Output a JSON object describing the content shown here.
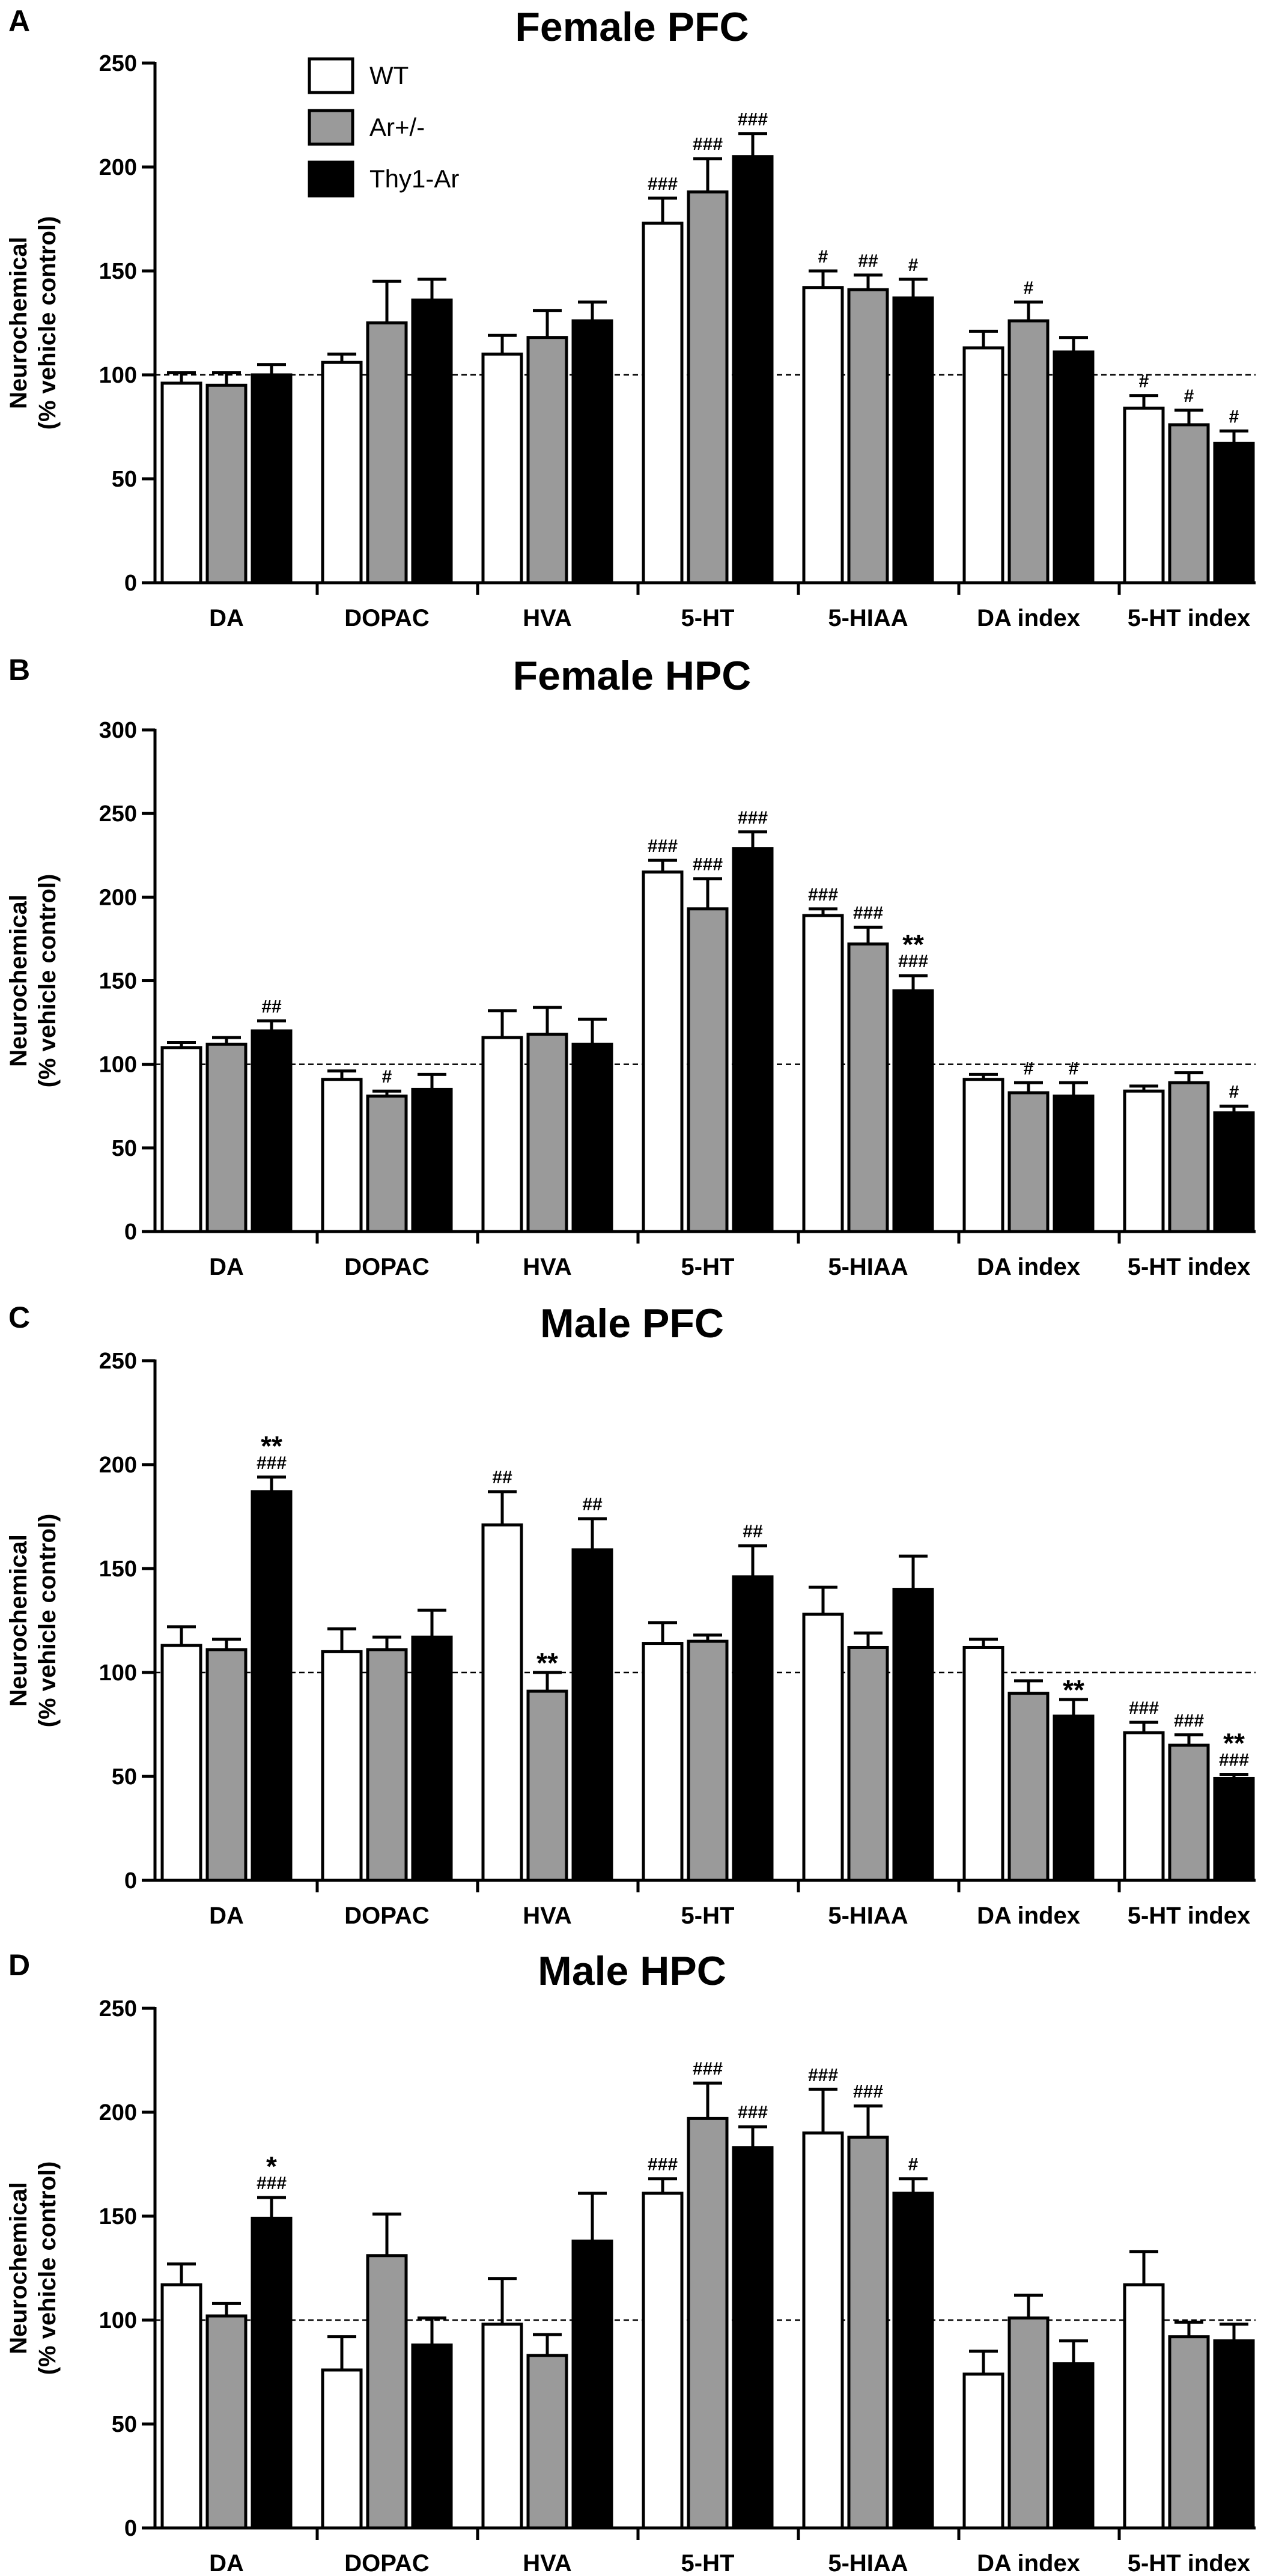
{
  "chart_data": [
    {
      "type": "bar",
      "panel": "A",
      "title": "Female PFC",
      "ylabel": [
        "Neurochemical",
        "(% vehicle control)"
      ],
      "ylim": [
        0,
        250
      ],
      "yticks": [
        0,
        50,
        100,
        150,
        200,
        250
      ],
      "reference_line": 100,
      "categories": [
        "DA",
        "DOPAC",
        "HVA",
        "5-HT",
        "5-HIAA",
        "DA index",
        "5-HT index"
      ],
      "legend": [
        "WT",
        "Ar+/-",
        "Thy1-Ar"
      ],
      "series": [
        {
          "name": "WT",
          "color": "#ffffff",
          "values": [
            96,
            106,
            110,
            173,
            142,
            113,
            84
          ],
          "errors": [
            5,
            4,
            9,
            12,
            8,
            8,
            6
          ]
        },
        {
          "name": "Ar+/-",
          "color": "#9a9a9a",
          "values": [
            95,
            125,
            118,
            188,
            141,
            126,
            76
          ],
          "errors": [
            6,
            20,
            13,
            16,
            7,
            9,
            7
          ]
        },
        {
          "name": "Thy1-Ar",
          "color": "#000000",
          "values": [
            100,
            136,
            126,
            205,
            137,
            111,
            67
          ],
          "errors": [
            5,
            10,
            9,
            11,
            9,
            7,
            6
          ]
        }
      ],
      "annotations": [
        {
          "cat": 3,
          "series": 0,
          "lines": [
            "###"
          ]
        },
        {
          "cat": 3,
          "series": 1,
          "lines": [
            "###"
          ]
        },
        {
          "cat": 3,
          "series": 2,
          "lines": [
            "###"
          ]
        },
        {
          "cat": 4,
          "series": 0,
          "lines": [
            "#"
          ]
        },
        {
          "cat": 4,
          "series": 1,
          "lines": [
            "##"
          ]
        },
        {
          "cat": 4,
          "series": 2,
          "lines": [
            "#"
          ]
        },
        {
          "cat": 5,
          "series": 1,
          "lines": [
            "#"
          ]
        },
        {
          "cat": 6,
          "series": 0,
          "lines": [
            "#"
          ]
        },
        {
          "cat": 6,
          "series": 1,
          "lines": [
            "#"
          ]
        },
        {
          "cat": 6,
          "series": 2,
          "lines": [
            "#"
          ]
        }
      ]
    },
    {
      "type": "bar",
      "panel": "B",
      "title": "Female HPC",
      "ylabel": [
        "Neurochemical",
        "(% vehicle control)"
      ],
      "ylim": [
        0,
        300
      ],
      "yticks": [
        0,
        50,
        100,
        150,
        200,
        250,
        300
      ],
      "reference_line": 100,
      "categories": [
        "DA",
        "DOPAC",
        "HVA",
        "5-HT",
        "5-HIAA",
        "DA index",
        "5-HT index"
      ],
      "series": [
        {
          "name": "WT",
          "color": "#ffffff",
          "values": [
            110,
            91,
            116,
            215,
            189,
            91,
            84
          ],
          "errors": [
            3,
            5,
            16,
            7,
            4,
            3,
            3
          ]
        },
        {
          "name": "Ar+/-",
          "color": "#9a9a9a",
          "values": [
            112,
            81,
            118,
            193,
            172,
            83,
            89
          ],
          "errors": [
            4,
            3,
            16,
            18,
            10,
            6,
            6
          ]
        },
        {
          "name": "Thy1-Ar",
          "color": "#000000",
          "values": [
            120,
            85,
            112,
            229,
            144,
            81,
            71
          ],
          "errors": [
            6,
            9,
            15,
            10,
            9,
            8,
            4
          ]
        }
      ],
      "annotations": [
        {
          "cat": 0,
          "series": 2,
          "lines": [
            "##"
          ]
        },
        {
          "cat": 1,
          "series": 1,
          "lines": [
            "#"
          ]
        },
        {
          "cat": 3,
          "series": 0,
          "lines": [
            "###"
          ]
        },
        {
          "cat": 3,
          "series": 1,
          "lines": [
            "###"
          ]
        },
        {
          "cat": 3,
          "series": 2,
          "lines": [
            "###"
          ]
        },
        {
          "cat": 4,
          "series": 0,
          "lines": [
            "###"
          ]
        },
        {
          "cat": 4,
          "series": 1,
          "lines": [
            "###"
          ]
        },
        {
          "cat": 4,
          "series": 2,
          "lines": [
            "**",
            "###"
          ]
        },
        {
          "cat": 5,
          "series": 1,
          "lines": [
            "#"
          ]
        },
        {
          "cat": 5,
          "series": 2,
          "lines": [
            "#"
          ]
        },
        {
          "cat": 6,
          "series": 2,
          "lines": [
            "#"
          ]
        }
      ]
    },
    {
      "type": "bar",
      "panel": "C",
      "title": "Male PFC",
      "ylabel": [
        "Neurochemical",
        "(% vehicle control)"
      ],
      "ylim": [
        0,
        250
      ],
      "yticks": [
        0,
        50,
        100,
        150,
        200,
        250
      ],
      "reference_line": 100,
      "categories": [
        "DA",
        "DOPAC",
        "HVA",
        "5-HT",
        "5-HIAA",
        "DA index",
        "5-HT index"
      ],
      "series": [
        {
          "name": "WT",
          "color": "#ffffff",
          "values": [
            113,
            110,
            171,
            114,
            128,
            112,
            71
          ],
          "errors": [
            9,
            11,
            16,
            10,
            13,
            4,
            5
          ]
        },
        {
          "name": "Ar+/-",
          "color": "#9a9a9a",
          "values": [
            111,
            111,
            91,
            115,
            112,
            90,
            65
          ],
          "errors": [
            5,
            6,
            9,
            3,
            7,
            6,
            5
          ]
        },
        {
          "name": "Thy1-Ar",
          "color": "#000000",
          "values": [
            187,
            117,
            159,
            146,
            140,
            79,
            49
          ],
          "errors": [
            7,
            13,
            15,
            15,
            16,
            8,
            2
          ]
        }
      ],
      "annotations": [
        {
          "cat": 0,
          "series": 2,
          "lines": [
            "**",
            "###"
          ]
        },
        {
          "cat": 2,
          "series": 0,
          "lines": [
            "##"
          ]
        },
        {
          "cat": 2,
          "series": 1,
          "lines": [
            "**"
          ]
        },
        {
          "cat": 2,
          "series": 2,
          "lines": [
            "##"
          ]
        },
        {
          "cat": 3,
          "series": 2,
          "lines": [
            "##"
          ]
        },
        {
          "cat": 5,
          "series": 2,
          "lines": [
            "**"
          ]
        },
        {
          "cat": 6,
          "series": 0,
          "lines": [
            "###"
          ]
        },
        {
          "cat": 6,
          "series": 1,
          "lines": [
            "###"
          ]
        },
        {
          "cat": 6,
          "series": 2,
          "lines": [
            "**",
            "###"
          ]
        }
      ]
    },
    {
      "type": "bar",
      "panel": "D",
      "title": "Male HPC",
      "ylabel": [
        "Neurochemical",
        "(% vehicle control)"
      ],
      "ylim": [
        0,
        250
      ],
      "yticks": [
        0,
        50,
        100,
        150,
        200,
        250
      ],
      "reference_line": 100,
      "categories": [
        "DA",
        "DOPAC",
        "HVA",
        "5-HT",
        "5-HIAA",
        "DA index",
        "5-HT index"
      ],
      "series": [
        {
          "name": "WT",
          "color": "#ffffff",
          "values": [
            117,
            76,
            98,
            161,
            190,
            74,
            117
          ],
          "errors": [
            10,
            16,
            22,
            7,
            21,
            11,
            16
          ]
        },
        {
          "name": "Ar+/-",
          "color": "#9a9a9a",
          "values": [
            102,
            131,
            83,
            197,
            188,
            101,
            92
          ],
          "errors": [
            6,
            20,
            10,
            17,
            15,
            11,
            7
          ]
        },
        {
          "name": "Thy1-Ar",
          "color": "#000000",
          "values": [
            149,
            88,
            138,
            183,
            161,
            79,
            90
          ],
          "errors": [
            10,
            13,
            23,
            10,
            7,
            11,
            8
          ]
        }
      ],
      "annotations": [
        {
          "cat": 0,
          "series": 2,
          "lines": [
            "*",
            "###"
          ]
        },
        {
          "cat": 3,
          "series": 0,
          "lines": [
            "###"
          ]
        },
        {
          "cat": 3,
          "series": 1,
          "lines": [
            "###"
          ]
        },
        {
          "cat": 3,
          "series": 2,
          "lines": [
            "###"
          ]
        },
        {
          "cat": 4,
          "series": 0,
          "lines": [
            "###"
          ]
        },
        {
          "cat": 4,
          "series": 1,
          "lines": [
            "###"
          ]
        },
        {
          "cat": 4,
          "series": 2,
          "lines": [
            "#"
          ]
        }
      ]
    }
  ]
}
